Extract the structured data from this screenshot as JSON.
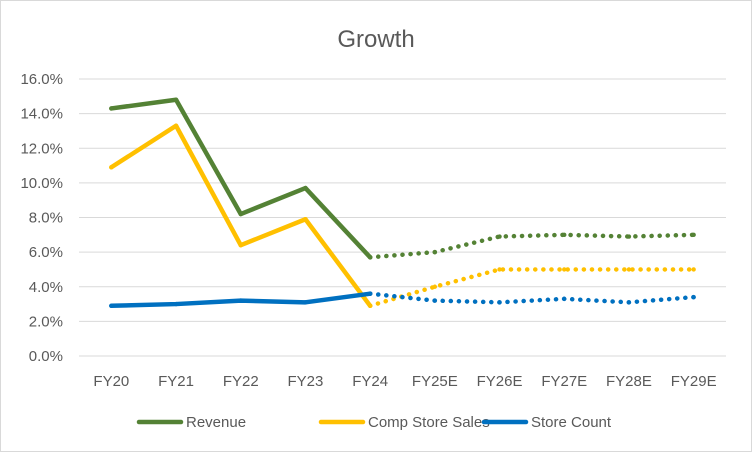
{
  "chart_data": {
    "type": "line",
    "title": "Growth",
    "xlabel": "",
    "ylabel": "",
    "ylim": [
      0,
      16
    ],
    "y_tick_step": 2,
    "y_tick_format": "percent_1dp",
    "y_tick_labels": [
      "0.0%",
      "2.0%",
      "4.0%",
      "6.0%",
      "8.0%",
      "10.0%",
      "12.0%",
      "14.0%",
      "16.0%"
    ],
    "categories": [
      "FY20",
      "FY21",
      "FY22",
      "FY23",
      "FY24",
      "FY25E",
      "FY26E",
      "FY27E",
      "FY28E",
      "FY29E"
    ],
    "grid": "horizontal",
    "legend_position": "bottom",
    "actual_through_index": 4,
    "series": [
      {
        "name": "Revenue",
        "color": "#548235",
        "values": [
          14.3,
          14.8,
          8.2,
          9.7,
          5.7,
          6.0,
          6.9,
          7.0,
          6.9,
          7.0
        ]
      },
      {
        "name": "Comp Store Sales",
        "color": "#FFC000",
        "values": [
          10.9,
          13.3,
          6.4,
          7.9,
          2.9,
          4.0,
          5.0,
          5.0,
          5.0,
          5.0
        ]
      },
      {
        "name": "Store Count",
        "color": "#0070C0",
        "values": [
          2.9,
          3.0,
          3.2,
          3.1,
          3.6,
          3.2,
          3.1,
          3.3,
          3.1,
          3.4
        ]
      }
    ]
  }
}
